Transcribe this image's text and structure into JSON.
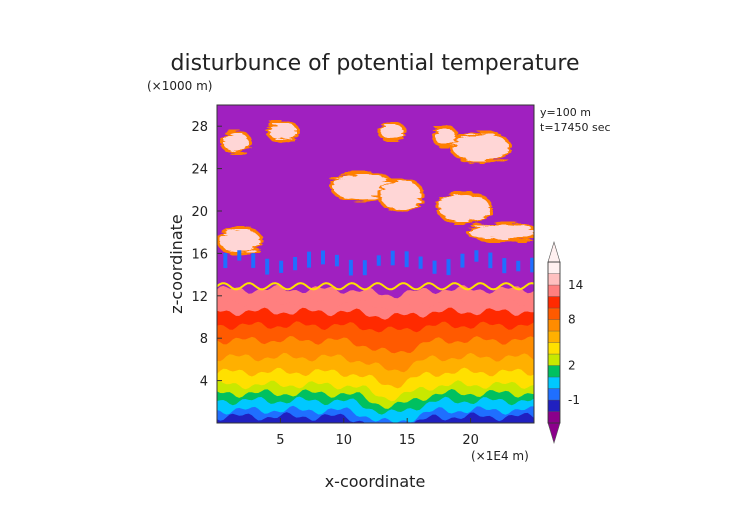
{
  "chart_data": {
    "type": "heatmap",
    "title": "disturbunce of potential temperature",
    "xlabel": "x-coordinate",
    "ylabel": "z-coordinate",
    "x_unit": "(×1E4 m)",
    "y_unit": "(×1000 m)",
    "annotations": [
      "y=100 m",
      "t=17450 sec"
    ],
    "xlim": [
      0,
      25
    ],
    "ylim": [
      0,
      30
    ],
    "x_ticks": [
      5,
      10,
      15,
      20
    ],
    "y_ticks": [
      4,
      8,
      12,
      16,
      20,
      24,
      28
    ],
    "colorbar": {
      "ticks": [
        {
          "label": "14",
          "value": 14
        },
        {
          "label": "8",
          "value": 8
        },
        {
          "label": "2",
          "value": 2
        },
        {
          "label": "-1",
          "value": -1
        }
      ],
      "colors": [
        "#8b008b",
        "#2020c0",
        "#1f6fff",
        "#00c8ff",
        "#00c060",
        "#c8e800",
        "#ffe000",
        "#ffb000",
        "#ff8c00",
        "#ff5a00",
        "#ff2a00",
        "#ff7f7f",
        "#ffc0c0",
        "#fff0f0"
      ],
      "levels": [
        -2,
        -1,
        0,
        1,
        2,
        3,
        4,
        6,
        8,
        10,
        12,
        14,
        16
      ]
    },
    "background_color": "#a020c0",
    "description_layers": [
      {
        "z_range": [
          0,
          2
        ],
        "value": -1.5
      },
      {
        "z_range": [
          2,
          4
        ],
        "value": 1
      },
      {
        "z_range": [
          4,
          8
        ],
        "value": 5
      },
      {
        "z_range": [
          8,
          11
        ],
        "value": 9
      },
      {
        "z_range": [
          11,
          12.5
        ],
        "value": 13
      },
      {
        "z_range": [
          12.5,
          30
        ],
        "value": -2,
        "note": "with pink cloud patches near z=16-28"
      }
    ]
  }
}
